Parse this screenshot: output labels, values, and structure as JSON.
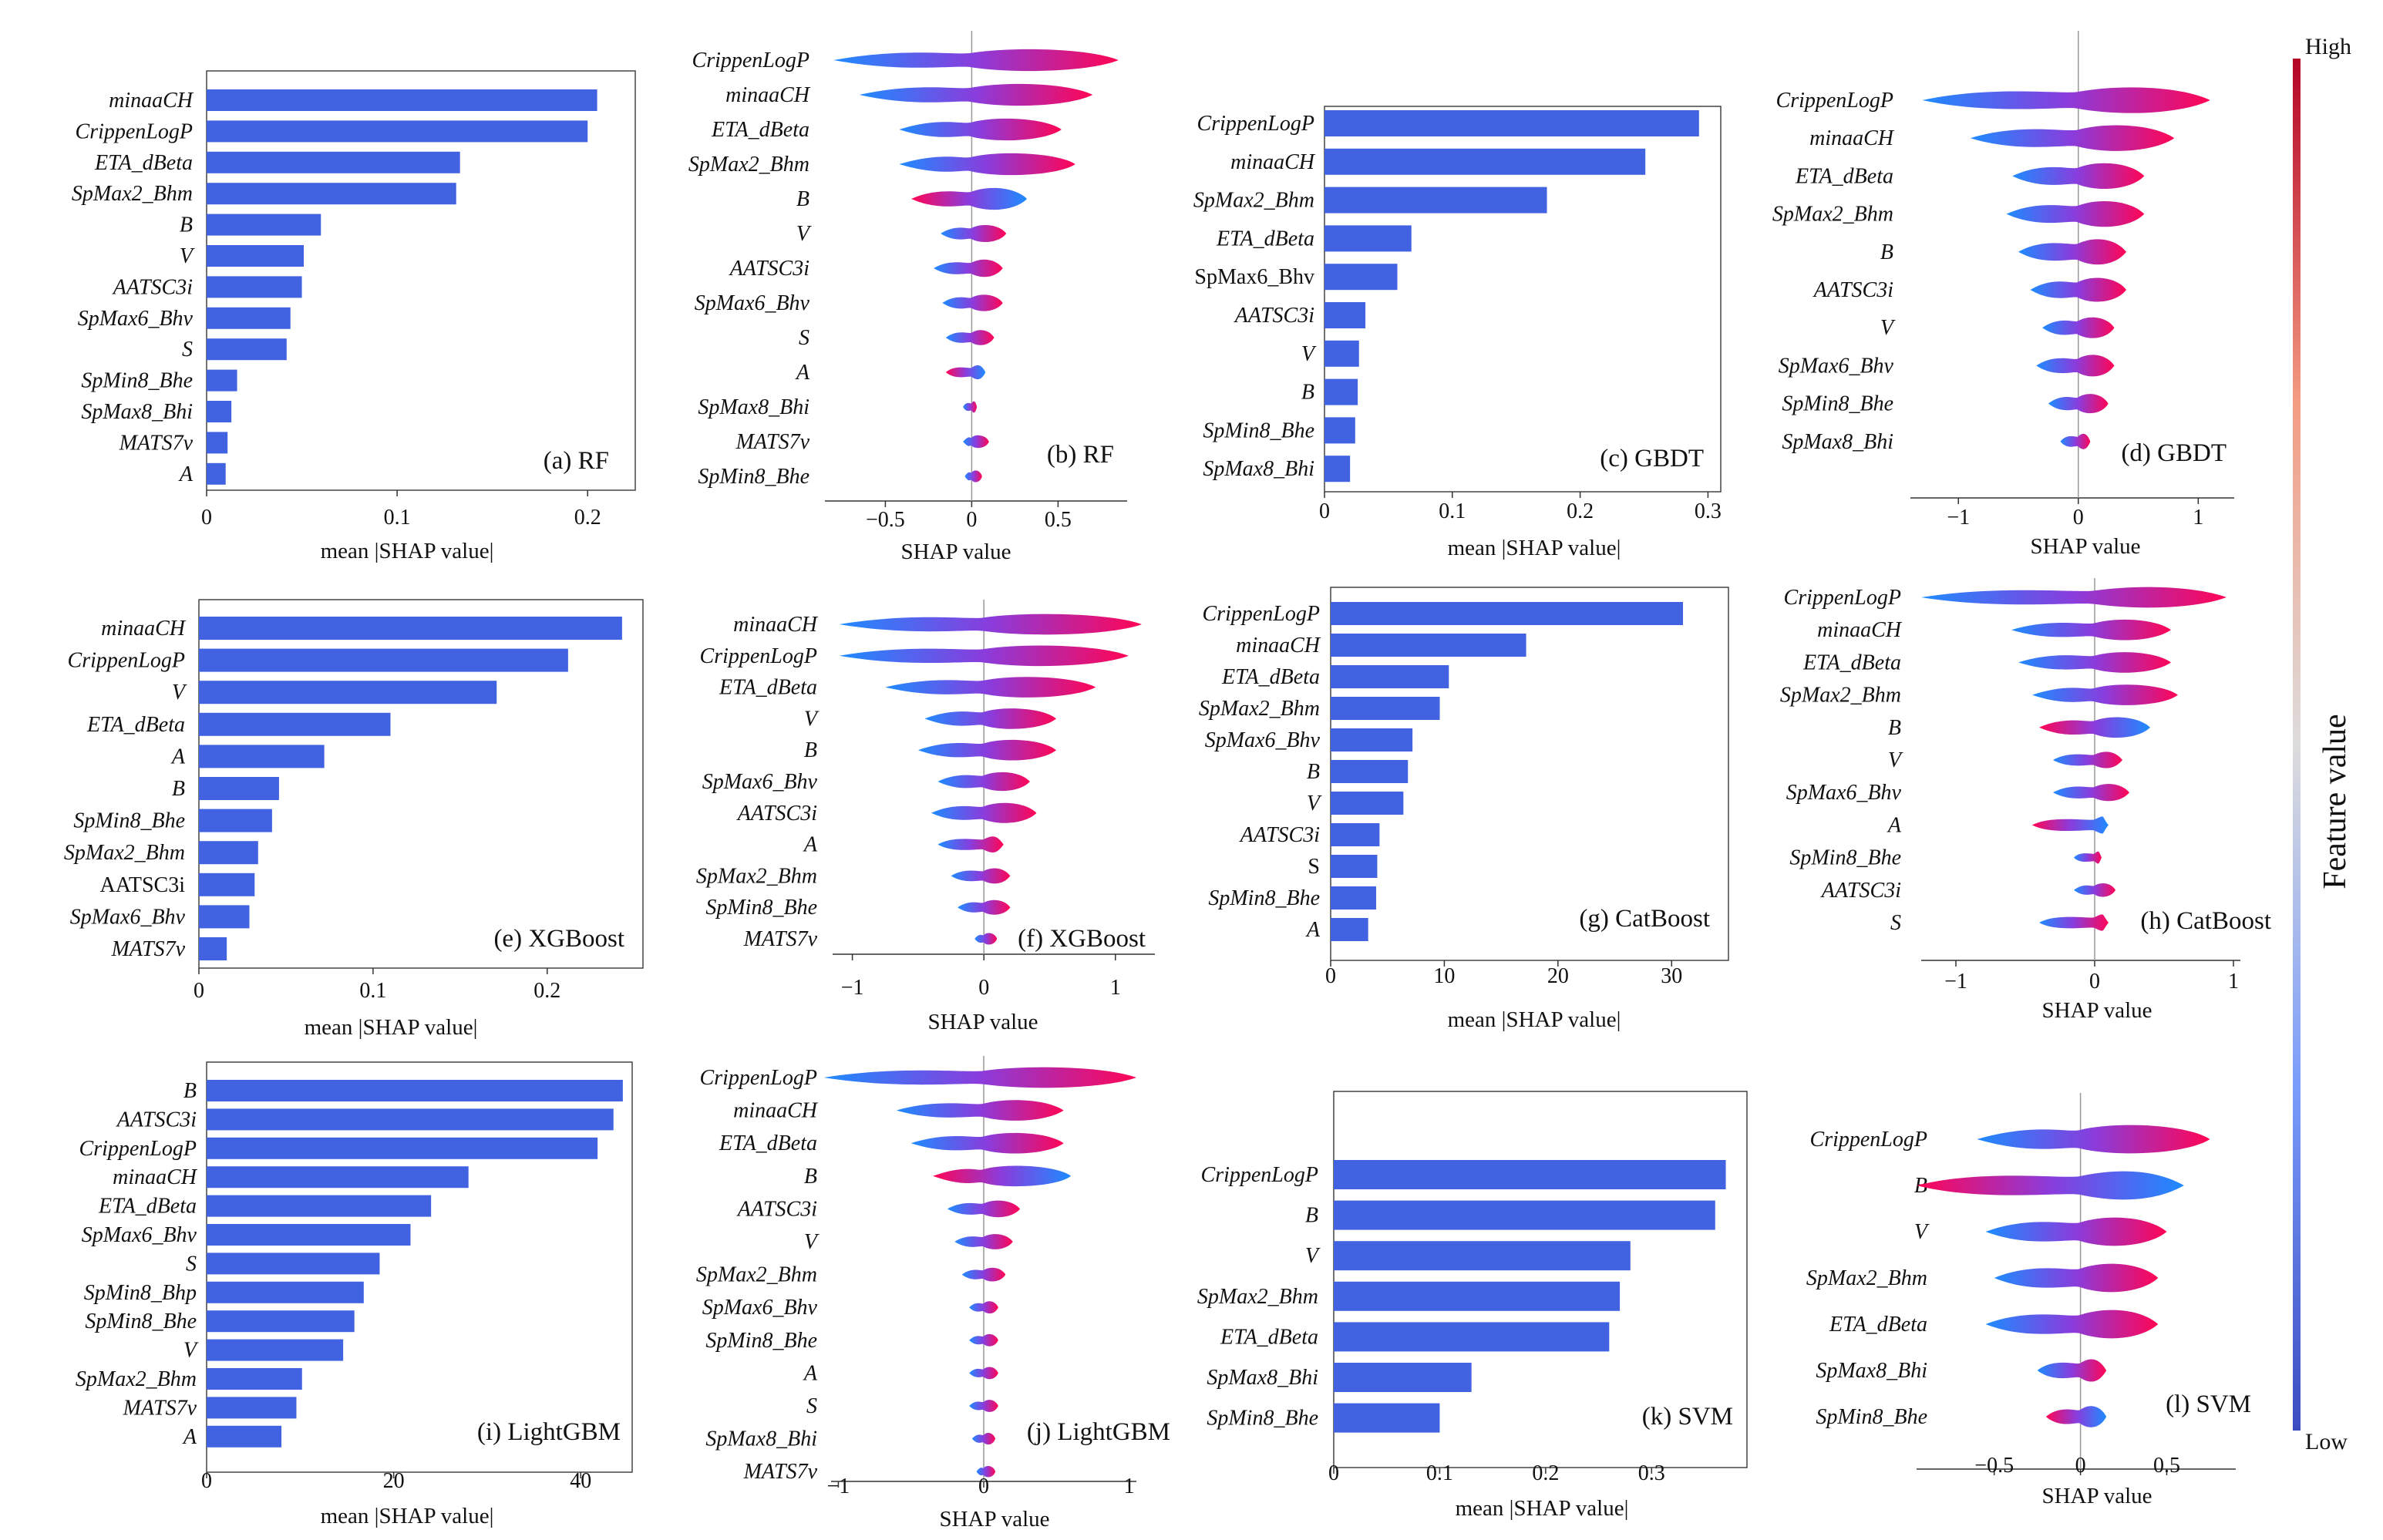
{
  "colors": {
    "bar": "#4163e2",
    "low": "#1e8bff",
    "mid": "#8a3cdc",
    "high": "#ff0555"
  },
  "colorbar": {
    "high": "High",
    "low": "Low",
    "title": "Feature value"
  },
  "chart_data": [
    {
      "id": "a",
      "type": "bar",
      "orientation": "horizontal",
      "panel_label": "(a) RF",
      "xlabel": "mean |SHAP value|",
      "categories": [
        "minaaCH",
        "CrippenLogP",
        "ETA_dBeta",
        "SpMax2_Bhm",
        "B",
        "V",
        "AATSC3i",
        "SpMax6_Bhv",
        "S",
        "SpMin8_Bhe",
        "SpMax8_Bhi",
        "MATS7v",
        "A"
      ],
      "italic": [
        true,
        true,
        true,
        true,
        true,
        true,
        true,
        true,
        true,
        true,
        true,
        true,
        true
      ],
      "values": [
        0.205,
        0.2,
        0.133,
        0.131,
        0.06,
        0.051,
        0.05,
        0.044,
        0.042,
        0.016,
        0.013,
        0.011,
        0.01
      ],
      "xlim": [
        0,
        0.225
      ],
      "xticks": [
        0,
        0.1,
        0.2
      ],
      "xtick_labels": [
        "0",
        "0.1",
        "0.2"
      ]
    },
    {
      "id": "b",
      "type": "beeswarm",
      "panel_label": "(b) RF",
      "xlabel": "SHAP value",
      "categories": [
        "CrippenLogP",
        "minaaCH",
        "ETA_dBeta",
        "SpMax2_Bhm",
        "B",
        "V",
        "AATSC3i",
        "SpMax6_Bhv",
        "S",
        "A",
        "SpMax8_Bhi",
        "MATS7v",
        "SpMin8_Bhe"
      ],
      "italic": [
        true,
        true,
        true,
        true,
        true,
        true,
        true,
        true,
        true,
        true,
        true,
        true,
        true
      ],
      "spans": [
        [
          -0.8,
          0.85
        ],
        [
          -0.65,
          0.7
        ],
        [
          -0.42,
          0.52
        ],
        [
          -0.42,
          0.6
        ],
        [
          -0.35,
          0.32
        ],
        [
          -0.18,
          0.2
        ],
        [
          -0.22,
          0.18
        ],
        [
          -0.17,
          0.18
        ],
        [
          -0.15,
          0.13
        ],
        [
          -0.15,
          0.08
        ],
        [
          -0.05,
          0.03
        ],
        [
          -0.05,
          0.1
        ],
        [
          -0.04,
          0.06
        ]
      ],
      "xlim": [
        -0.85,
        0.9
      ],
      "xticks": [
        -0.5,
        0,
        0.5
      ],
      "xtick_labels": [
        "−0.5",
        "0",
        "0.5"
      ]
    },
    {
      "id": "c",
      "type": "bar",
      "orientation": "horizontal",
      "panel_label": "(c) GBDT",
      "xlabel": "mean |SHAP value|",
      "categories": [
        "CrippenLogP",
        "minaaCH",
        "SpMax2_Bhm",
        "ETA_dBeta",
        "SpMax6_Bhv",
        "AATSC3i",
        "V",
        "B",
        "SpMin8_Bhe",
        "SpMax8_Bhi"
      ],
      "italic": [
        true,
        true,
        true,
        true,
        false,
        true,
        true,
        true,
        true,
        true
      ],
      "values": [
        0.293,
        0.251,
        0.174,
        0.068,
        0.057,
        0.032,
        0.027,
        0.026,
        0.024,
        0.02
      ],
      "xlim": [
        0,
        0.31
      ],
      "xticks": [
        0,
        0.1,
        0.2,
        0.3
      ],
      "xtick_labels": [
        "0",
        "0.1",
        "0.2",
        "0.3"
      ]
    },
    {
      "id": "d",
      "type": "beeswarm",
      "panel_label": "(d) GBDT",
      "xlabel": "SHAP value",
      "categories": [
        "CrippenLogP",
        "minaaCH",
        "ETA_dBeta",
        "SpMax2_Bhm",
        "B",
        "AATSC3i",
        "V",
        "SpMax6_Bhv",
        "SpMin8_Bhe",
        "SpMax8_Bhi"
      ],
      "italic": [
        true,
        true,
        true,
        true,
        true,
        true,
        true,
        true,
        true,
        true
      ],
      "spans": [
        [
          -1.3,
          1.1
        ],
        [
          -0.9,
          0.8
        ],
        [
          -0.55,
          0.55
        ],
        [
          -0.6,
          0.55
        ],
        [
          -0.5,
          0.4
        ],
        [
          -0.4,
          0.4
        ],
        [
          -0.3,
          0.3
        ],
        [
          -0.35,
          0.3
        ],
        [
          -0.25,
          0.25
        ],
        [
          -0.15,
          0.1
        ]
      ],
      "xlim": [
        -1.4,
        1.3
      ],
      "xticks": [
        -1,
        0,
        1
      ],
      "xtick_labels": [
        "−1",
        "0",
        "1"
      ]
    },
    {
      "id": "e",
      "type": "bar",
      "orientation": "horizontal",
      "panel_label": "(e) XGBoost",
      "xlabel": "mean |SHAP value|",
      "categories": [
        "minaaCH",
        "CrippenLogP",
        "V",
        "ETA_dBeta",
        "A",
        "B",
        "SpMin8_Bhe",
        "SpMax2_Bhm",
        "AATSC3i",
        "SpMax6_Bhv",
        "MATS7v"
      ],
      "italic": [
        true,
        true,
        true,
        true,
        true,
        true,
        true,
        true,
        false,
        true,
        true
      ],
      "values": [
        0.243,
        0.212,
        0.171,
        0.11,
        0.072,
        0.046,
        0.042,
        0.034,
        0.032,
        0.029,
        0.016
      ],
      "xlim": [
        0,
        0.255
      ],
      "xticks": [
        0,
        0.1,
        0.2
      ],
      "xtick_labels": [
        "0",
        "0.1",
        "0.2"
      ]
    },
    {
      "id": "f",
      "type": "beeswarm",
      "panel_label": "(f) XGBoost",
      "xlabel": "SHAP value",
      "categories": [
        "minaaCH",
        "CrippenLogP",
        "ETA_dBeta",
        "V",
        "B",
        "SpMax6_Bhv",
        "AATSC3i",
        "A",
        "SpMax2_Bhm",
        "SpMin8_Bhe",
        "MATS7v"
      ],
      "italic": [
        true,
        true,
        true,
        true,
        true,
        true,
        true,
        true,
        true,
        true,
        true
      ],
      "spans": [
        [
          -1.1,
          1.2
        ],
        [
          -1.1,
          1.1
        ],
        [
          -0.75,
          0.85
        ],
        [
          -0.45,
          0.55
        ],
        [
          -0.5,
          0.55
        ],
        [
          -0.35,
          0.35
        ],
        [
          -0.4,
          0.4
        ],
        [
          -0.35,
          0.15
        ],
        [
          -0.25,
          0.2
        ],
        [
          -0.2,
          0.2
        ],
        [
          -0.07,
          0.1
        ]
      ],
      "xlim": [
        -1.15,
        1.3
      ],
      "xticks": [
        -1,
        0,
        1
      ],
      "xtick_labels": [
        "−1",
        "0",
        "1"
      ]
    },
    {
      "id": "g",
      "type": "bar",
      "orientation": "horizontal",
      "panel_label": "(g) CatBoost",
      "xlabel": "mean |SHAP value|",
      "categories": [
        "CrippenLogP",
        "minaaCH",
        "ETA_dBeta",
        "SpMax2_Bhm",
        "SpMax6_Bhv",
        "B",
        "V",
        "AATSC3i",
        "S",
        "SpMin8_Bhe",
        "A"
      ],
      "italic": [
        true,
        true,
        true,
        true,
        true,
        true,
        true,
        true,
        false,
        true,
        true
      ],
      "values": [
        31,
        17.2,
        10.4,
        9.6,
        7.2,
        6.8,
        6.4,
        4.3,
        4.1,
        4,
        3.3
      ],
      "xlim": [
        0,
        35
      ],
      "xticks": [
        0,
        10,
        20,
        30
      ],
      "xtick_labels": [
        "0",
        "10",
        "20",
        "30"
      ]
    },
    {
      "id": "h",
      "type": "beeswarm",
      "panel_label": "(h) CatBoost",
      "xlabel": "SHAP value",
      "categories": [
        "CrippenLogP",
        "minaaCH",
        "ETA_dBeta",
        "SpMax2_Bhm",
        "B",
        "V",
        "SpMax6_Bhv",
        "A",
        "SpMin8_Bhe",
        "AATSC3i",
        "S"
      ],
      "italic": [
        true,
        true,
        true,
        true,
        true,
        true,
        true,
        true,
        true,
        true,
        true
      ],
      "spans": [
        [
          -1.25,
          0.95
        ],
        [
          -0.6,
          0.55
        ],
        [
          -0.55,
          0.55
        ],
        [
          -0.45,
          0.6
        ],
        [
          -0.4,
          0.4
        ],
        [
          -0.3,
          0.2
        ],
        [
          -0.3,
          0.25
        ],
        [
          -0.45,
          0.1
        ],
        [
          -0.15,
          0.05
        ],
        [
          -0.15,
          0.15
        ],
        [
          -0.4,
          0.1
        ]
      ],
      "xlim": [
        -1.25,
        1.05
      ],
      "xticks": [
        -1,
        0,
        1
      ],
      "xtick_labels": [
        "−1",
        "0",
        "1"
      ]
    },
    {
      "id": "i",
      "type": "bar",
      "orientation": "horizontal",
      "panel_label": "(i) LightGBM",
      "xlabel": "mean |SHAP value|",
      "categories": [
        "B",
        "AATSC3i",
        "CrippenLogP",
        "minaaCH",
        "ETA_dBeta",
        "SpMax6_Bhv",
        "S",
        "SpMin8_Bhp",
        "SpMin8_Bhe",
        "V",
        "SpMax2_Bhm",
        "MATS7v",
        "A"
      ],
      "italic": [
        true,
        true,
        true,
        true,
        true,
        true,
        true,
        true,
        true,
        true,
        true,
        true,
        true
      ],
      "values": [
        44.5,
        43.5,
        41.8,
        28,
        24,
        21.8,
        18.5,
        16.8,
        15.8,
        14.6,
        10.2,
        9.6,
        8
      ],
      "xlim": [
        0,
        45.5
      ],
      "xticks": [
        0,
        20,
        40
      ],
      "xtick_labels": [
        "0",
        "20",
        "40"
      ]
    },
    {
      "id": "j",
      "type": "beeswarm",
      "panel_label": "(j) LightGBM",
      "xlabel": "SHAP value",
      "categories": [
        "CrippenLogP",
        "minaaCH",
        "ETA_dBeta",
        "B",
        "AATSC3i",
        "V",
        "SpMax2_Bhm",
        "SpMax6_Bhv",
        "SpMin8_Bhe",
        "A",
        "S",
        "SpMax8_Bhi",
        "MATS7v"
      ],
      "italic": [
        true,
        true,
        true,
        true,
        true,
        true,
        true,
        true,
        true,
        true,
        true,
        true,
        true
      ],
      "spans": [
        [
          -1.1,
          1.05
        ],
        [
          -0.6,
          0.55
        ],
        [
          -0.5,
          0.55
        ],
        [
          -0.35,
          0.6
        ],
        [
          -0.25,
          0.25
        ],
        [
          -0.2,
          0.2
        ],
        [
          -0.15,
          0.15
        ],
        [
          -0.1,
          0.1
        ],
        [
          -0.1,
          0.1
        ],
        [
          -0.1,
          0.1
        ],
        [
          -0.1,
          0.1
        ],
        [
          -0.08,
          0.08
        ],
        [
          -0.05,
          0.08
        ]
      ],
      "xlim": [
        -1.05,
        1.05
      ],
      "xticks": [
        -1,
        0,
        1
      ],
      "xtick_labels": [
        "−1",
        "0",
        "1"
      ]
    },
    {
      "id": "k",
      "type": "bar",
      "orientation": "horizontal",
      "panel_label": "(k) SVM",
      "xlabel": "mean |SHAP value|",
      "categories": [
        "CrippenLogP",
        "B",
        "V",
        "SpMax2_Bhm",
        "ETA_dBeta",
        "SpMax8_Bhi",
        "SpMin8_Bhe"
      ],
      "italic": [
        true,
        true,
        true,
        true,
        true,
        true,
        true
      ],
      "values": [
        0.37,
        0.36,
        0.28,
        0.27,
        0.26,
        0.13,
        0.1
      ],
      "xlim": [
        0,
        0.39
      ],
      "xticks": [
        0,
        0.1,
        0.2,
        0.3
      ],
      "xtick_labels": [
        "0",
        "0.1",
        "0.2",
        "0.3"
      ]
    },
    {
      "id": "l",
      "type": "beeswarm",
      "panel_label": "(l) SVM",
      "xlabel": "SHAP value",
      "categories": [
        "CrippenLogP",
        "B",
        "V",
        "SpMax2_Bhm",
        "ETA_dBeta",
        "SpMax8_Bhi",
        "SpMin8_Bhe"
      ],
      "italic": [
        true,
        true,
        true,
        true,
        true,
        true,
        true
      ],
      "spans": [
        [
          -0.6,
          0.75
        ],
        [
          -0.95,
          0.6
        ],
        [
          -0.55,
          0.5
        ],
        [
          -0.5,
          0.45
        ],
        [
          -0.55,
          0.45
        ],
        [
          -0.25,
          0.15
        ],
        [
          -0.2,
          0.15
        ]
      ],
      "xlim": [
        -0.95,
        0.9
      ],
      "xticks": [
        -0.5,
        0,
        0.5
      ],
      "xtick_labels": [
        "−0.5",
        "0",
        "0.5"
      ]
    }
  ]
}
